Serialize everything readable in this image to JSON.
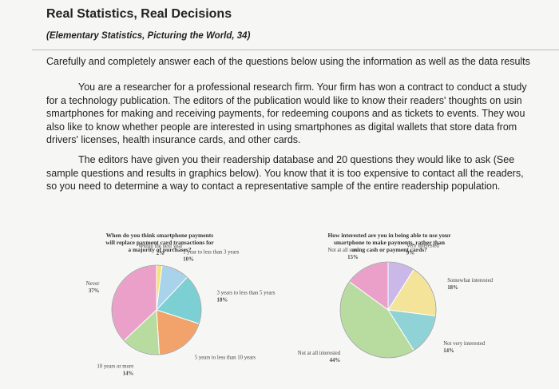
{
  "header": {
    "title": "Real Statistics, Real Decisions",
    "subtitle": "(Elementary Statistics, Picturing the World, 34)"
  },
  "instruction": "Carefully and completely answer each of the questions below using the information as well as the data results",
  "paragraphs": [
    [
      "You are a researcher for a professional research firm. Your firm has won a contract to conduct a study",
      "for a technology publication. The editors of the publication would like to know their readers' thoughts on usin",
      "smartphones for making and receiving payments, for redeeming coupons and as tickets to events. They wou",
      "also like to know whether people are interested in using smartphones as digital wallets that store data from",
      "drivers' licenses, health insurance cards, and other cards."
    ],
    [
      "The editors have given you their readership database and 20 questions they would like to ask (See",
      "sample questions and results in graphics below). You know that it is too expensive to contact all the readers,",
      "so you need to determine a way to contact a representative sample of the entire readership population."
    ]
  ],
  "charts": [
    {
      "type": "pie",
      "title": "When do you think smartphone payments will replace payment card transactions for a majority of purchases?",
      "categories": [
        "Within the next year",
        "1 year to less than 3 years",
        "3 years to less than 5 years",
        "5 years to less than 10 years",
        "10 years or more",
        "Never"
      ],
      "values": [
        2,
        10,
        18,
        19,
        14,
        37
      ],
      "value_labels": [
        "2%",
        "10%",
        "18%",
        null,
        "14%",
        "37%"
      ],
      "colors": [
        "#f3e27a",
        "#a9d3ea",
        "#7ccfd2",
        "#f2a36c",
        "#b8dca0",
        "#eaa0c8"
      ]
    },
    {
      "type": "pie",
      "title": "How interested are you in being able to use your smartphone to make payments, rather than using cash or payment cards?",
      "categories": [
        "Not at all sure",
        "Very interested",
        "Somewhat interested",
        "Not very interested",
        "Not at all interested"
      ],
      "values": [
        15,
        9,
        18,
        14,
        44
      ],
      "value_labels": [
        "15%",
        "9%",
        "18%",
        "14%",
        "44%"
      ],
      "colors": [
        "#eaa0c8",
        "#c9b8e8",
        "#f3e49a",
        "#8fd3d6",
        "#b8dca0"
      ]
    }
  ]
}
